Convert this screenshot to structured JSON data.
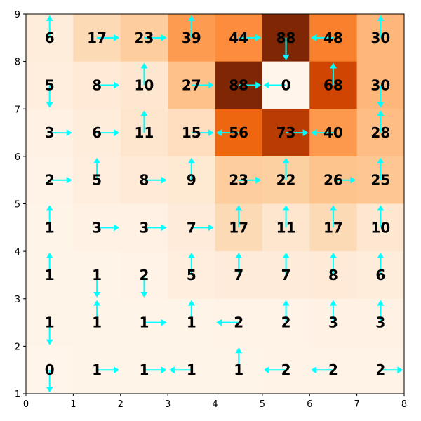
{
  "chart_data": {
    "type": "heatmap",
    "title": "",
    "xlabel": "",
    "ylabel": "",
    "xlim": [
      0,
      8
    ],
    "ylim": [
      1,
      9
    ],
    "x_ticks": [
      "0",
      "1",
      "2",
      "3",
      "4",
      "5",
      "6",
      "7",
      "8"
    ],
    "y_ticks": [
      "1",
      "2",
      "3",
      "4",
      "5",
      "6",
      "7",
      "8",
      "9"
    ],
    "colormap": "Oranges",
    "vmin": 0,
    "vmax": 88,
    "arrow_color": "#00ffff",
    "rows": [
      {
        "row": 8,
        "values": [
          6,
          17,
          23,
          39,
          44,
          88,
          48,
          30
        ],
        "arrows": [
          "up",
          "right",
          "right",
          "up",
          "right",
          "down",
          "left",
          "up"
        ]
      },
      {
        "row": 7,
        "values": [
          5,
          8,
          10,
          27,
          88,
          0,
          68,
          30
        ],
        "arrows": [
          "down",
          "right",
          "up",
          "right",
          "right",
          "left",
          "up",
          "down"
        ]
      },
      {
        "row": 6,
        "values": [
          3,
          6,
          11,
          15,
          56,
          73,
          40,
          28
        ],
        "arrows": [
          "right",
          "right",
          "up",
          "right",
          "left",
          "right",
          "left",
          "up"
        ]
      },
      {
        "row": 5,
        "values": [
          2,
          5,
          8,
          9,
          23,
          22,
          26,
          25
        ],
        "arrows": [
          "right",
          "up",
          "right",
          "up",
          "right",
          "up",
          "right",
          "up"
        ]
      },
      {
        "row": 4,
        "values": [
          1,
          3,
          3,
          7,
          17,
          11,
          17,
          10
        ],
        "arrows": [
          "up",
          "right",
          "right",
          "right",
          "up",
          "up",
          "up",
          "up"
        ]
      },
      {
        "row": 3,
        "values": [
          1,
          1,
          2,
          5,
          7,
          7,
          8,
          6
        ],
        "arrows": [
          "up",
          "down",
          "down",
          "up",
          "up",
          "up",
          "up",
          "up"
        ]
      },
      {
        "row": 2,
        "values": [
          1,
          1,
          1,
          1,
          2,
          2,
          3,
          3
        ],
        "arrows": [
          "down",
          "up",
          "right",
          "up",
          "left",
          "up",
          "up",
          "up"
        ]
      },
      {
        "row": 1,
        "values": [
          0,
          1,
          1,
          1,
          1,
          2,
          2,
          2
        ],
        "arrows": [
          "down",
          "right",
          "right",
          "left",
          "up",
          "left",
          "left",
          "right"
        ]
      }
    ]
  }
}
